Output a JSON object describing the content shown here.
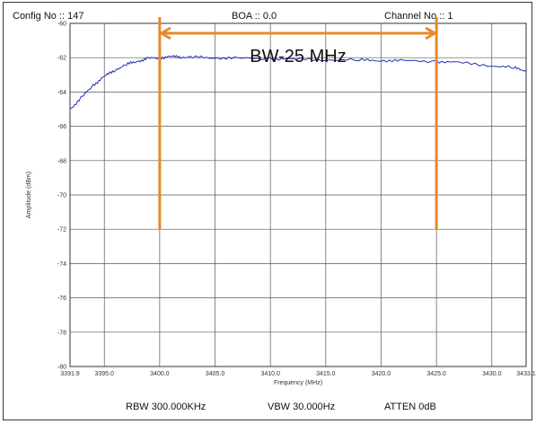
{
  "header": {
    "config": "Config No :: 147",
    "boa": "BOA :: 0.0",
    "channel": "Channel No :: 1"
  },
  "footer": {
    "rbw": "RBW 300.000KHz",
    "vbw": "VBW 30.000Hz",
    "atten": "ATTEN 0dB"
  },
  "chart_data": {
    "type": "line",
    "title": "",
    "xlabel": "Frequency (MHz)",
    "ylabel": "Amplitude (dBm)",
    "xlim": [
      3391.9,
      3433.1
    ],
    "ylim": [
      -80,
      -60
    ],
    "x_ticks": [
      3391.9,
      3395.0,
      3400.0,
      3405.0,
      3410.0,
      3415.0,
      3420.0,
      3425.0,
      3430.0,
      3433.1
    ],
    "x_tick_labels": [
      "3391.9",
      "3395.0",
      "3400.0",
      "3405.0",
      "3410.0",
      "3415.0",
      "3420.0",
      "3425.0",
      "3430.0",
      "3433.1"
    ],
    "y_ticks": [
      -60,
      -62,
      -64,
      -66,
      -68,
      -70,
      -72,
      -74,
      -76,
      -78,
      -80
    ],
    "y_tick_labels": [
      "-60",
      "-62",
      "-64",
      "-66",
      "-68",
      "-70",
      "-72",
      "-74",
      "-76",
      "-78",
      "-80"
    ],
    "grid": true,
    "series": [
      {
        "color": "#1f2fb8",
        "x": [
          3391.9,
          3393.0,
          3394.0,
          3395.0,
          3396.0,
          3397.0,
          3398.0,
          3399.0,
          3400.0,
          3401.0,
          3402.0,
          3403.0,
          3405.0,
          3407.0,
          3410.0,
          3412.0,
          3415.0,
          3418.0,
          3420.0,
          3422.0,
          3425.0,
          3427.0,
          3430.0,
          3432.0,
          3433.1
        ],
        "y": [
          -65.0,
          -64.3,
          -63.6,
          -63.1,
          -62.7,
          -62.4,
          -62.2,
          -62.05,
          -62.0,
          -61.95,
          -61.95,
          -61.98,
          -62.0,
          -62.05,
          -62.05,
          -62.1,
          -62.1,
          -62.15,
          -62.15,
          -62.2,
          -62.2,
          -62.3,
          -62.45,
          -62.6,
          -62.75
        ]
      }
    ],
    "annotations": {
      "color": "#e8892c",
      "bw_label": "BW-25 MHz",
      "marker_x": [
        3400.0,
        3425.0
      ],
      "marker_y_bottom": -72
    }
  }
}
